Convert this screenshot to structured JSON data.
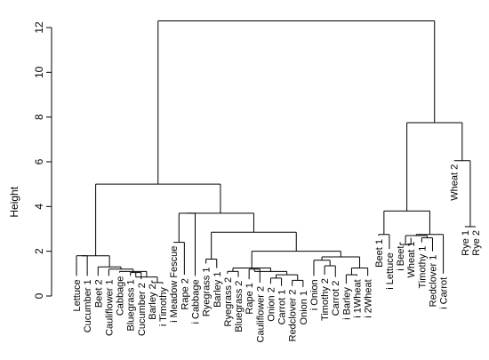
{
  "chart_data": {
    "type": "dendrogram",
    "ylabel": "Height",
    "ylim": [
      0,
      12.5
    ],
    "yticks": [
      0,
      2,
      4,
      6,
      8,
      10,
      12
    ],
    "leaves": [
      "Lettuce",
      "Cucumber 1",
      "Beet 2",
      "Cauliflower 1",
      "Cabbage",
      "Bluegrass 1",
      "Cucumber 2",
      "Barley 2",
      "i Timothy",
      "i Meadow Fescue",
      "Rape 2",
      "i Cabbage",
      "Ryegrass 1",
      "Barley 1",
      "Ryegrass 2",
      "Bluegrass 2",
      "Rape 1",
      "Cauliflower 2",
      "Onion 2",
      "Carrot 1",
      "Redclover 2",
      "Onion 1",
      "i Onion",
      "Timothy 2",
      "Carrot 2",
      "i Barley",
      "i 1Wheat",
      "i 2Wheat",
      "Beet 1",
      "i Lettuce",
      "i Beet",
      "Wheat 1",
      "Timothy 1",
      "Redclover 1",
      "i Carrot",
      "Wheat 2",
      "Rye 1",
      "Rye 2"
    ],
    "leaf_heights": [
      0.9,
      0.9,
      0.9,
      0.9,
      1.05,
      0.9,
      0.75,
      0.7,
      0.55,
      2.4,
      0.95,
      0.9,
      1.45,
      1.25,
      1.0,
      0.85,
      0.75,
      0.6,
      0.55,
      0.45,
      0.45,
      0.4,
      0.9,
      0.95,
      0.85,
      0.55,
      0.9,
      0.9,
      2.7,
      2.1,
      2.4,
      2.6,
      2.4,
      2.0,
      1.0,
      6.05,
      3.1,
      3.1
    ],
    "merges": [
      [
        -1,
        -2,
        1.8
      ],
      [
        -6,
        -7,
        1.05
      ],
      [
        -8,
        -9,
        0.6
      ],
      [
        2,
        3,
        0.85
      ],
      [
        -5,
        4,
        1.1
      ],
      [
        -4,
        5,
        1.2
      ],
      [
        -3,
        6,
        1.3
      ],
      [
        1,
        7,
        1.8
      ],
      [
        -10,
        -11,
        2.4
      ],
      [
        -13,
        -14,
        1.65
      ],
      [
        -15,
        -16,
        1.1
      ],
      [
        -17,
        -18,
        1.2
      ],
      [
        -19,
        -20,
        0.8
      ],
      [
        -21,
        -22,
        0.7
      ],
      [
        13,
        14,
        0.95
      ],
      [
        12,
        15,
        1.1
      ],
      [
        11,
        16,
        1.25
      ],
      [
        -26,
        -27,
        0.95
      ],
      [
        -28,
        18,
        1.25
      ],
      [
        -24,
        -25,
        1.35
      ],
      [
        -23,
        20,
        1.6
      ],
      [
        19,
        21,
        1.75
      ],
      [
        17,
        22,
        2.0
      ],
      [
        10,
        23,
        2.85
      ],
      [
        9,
        -12,
        3.7
      ],
      [
        24,
        25,
        3.7
      ],
      [
        8,
        26,
        5.0
      ],
      [
        -29,
        -30,
        2.75
      ],
      [
        -31,
        -32,
        2.3
      ],
      [
        -33,
        -34,
        2.6
      ],
      [
        29,
        30,
        2.7
      ],
      [
        31,
        -35,
        2.75
      ],
      [
        28,
        32,
        3.8
      ],
      [
        -37,
        -38,
        3.1
      ],
      [
        -36,
        34,
        6.05
      ],
      [
        33,
        35,
        7.75
      ],
      [
        27,
        36,
        12.3
      ]
    ]
  }
}
